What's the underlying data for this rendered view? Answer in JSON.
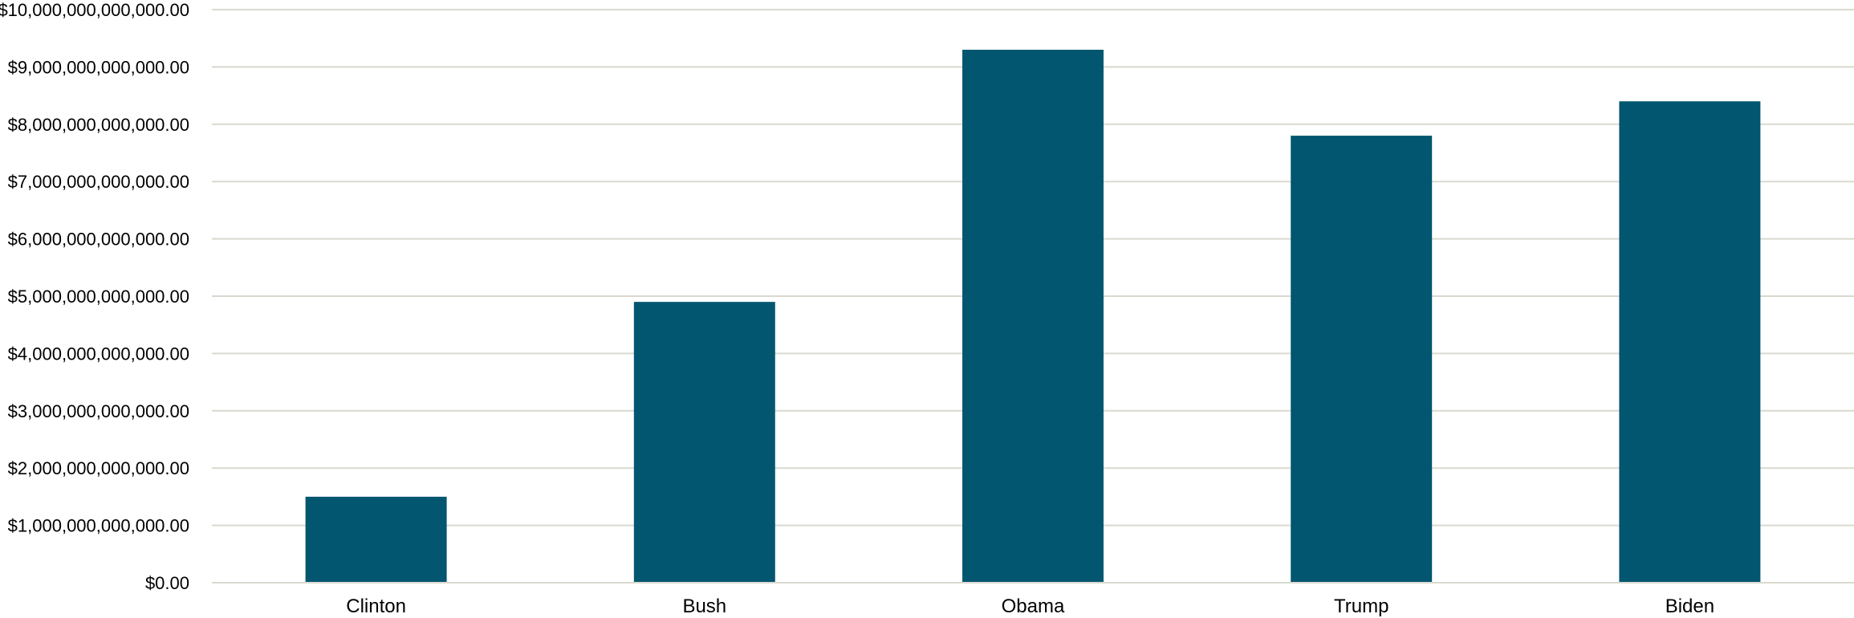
{
  "chart_data": {
    "type": "bar",
    "categories": [
      "Clinton",
      "Bush",
      "Obama",
      "Trump",
      "Biden"
    ],
    "values": [
      1500000000000,
      4900000000000,
      9300000000000,
      7800000000000,
      8400000000000
    ],
    "ylim": [
      0,
      10000000000000
    ],
    "y_tick_step": 1000000000000,
    "y_tick_labels": [
      "$0.00",
      "$1,000,000,000,000.00",
      "$2,000,000,000,000.00",
      "$3,000,000,000,000.00",
      "$4,000,000,000,000.00",
      "$5,000,000,000,000.00",
      "$6,000,000,000,000.00",
      "$7,000,000,000,000.00",
      "$8,000,000,000,000.00",
      "$9,000,000,000,000.00",
      "$10,000,000,000,000.00"
    ],
    "bar_color": "#03566f",
    "gridline_color": "#d9d9d0",
    "grid": true,
    "legend": "none",
    "title": "",
    "xlabel": "",
    "ylabel": ""
  }
}
